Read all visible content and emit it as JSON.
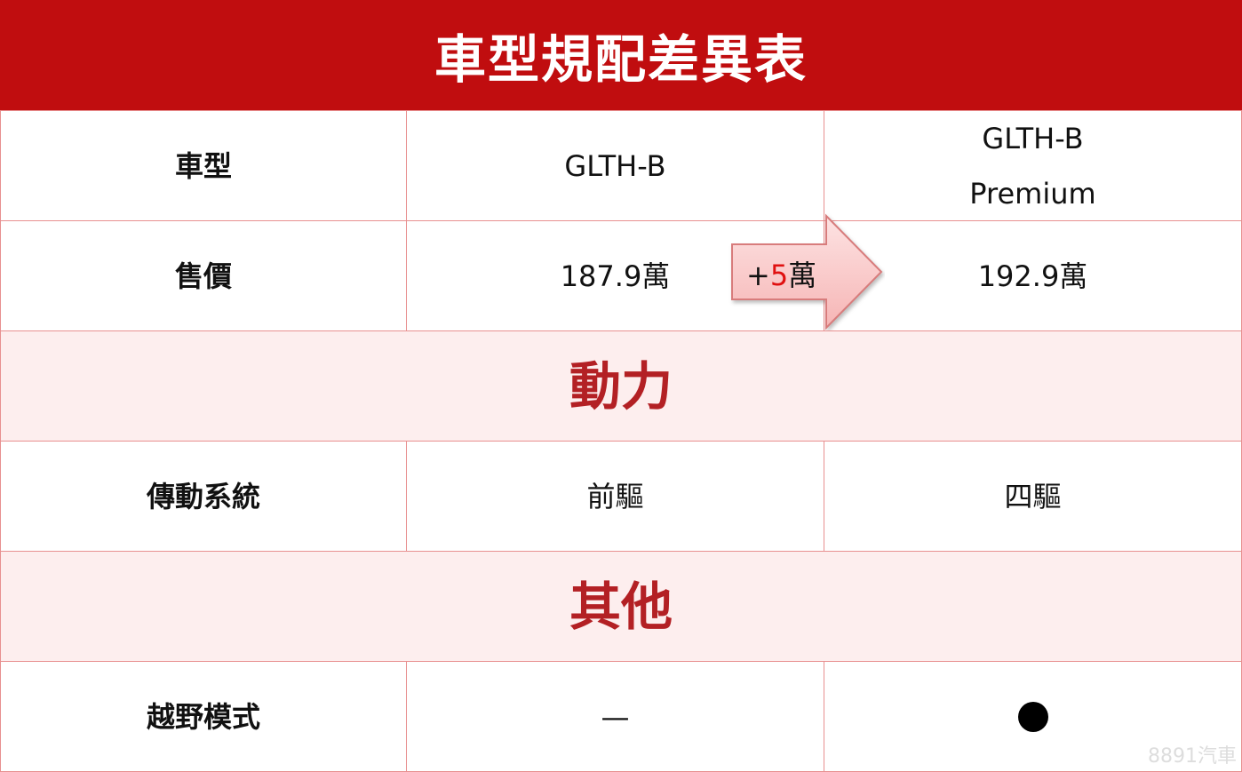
{
  "title": "車型規配差異表",
  "header_row": {
    "label": "車型",
    "col1": "GLTH-B",
    "col2_line1": "GLTH-B",
    "col2_line2": "Premium"
  },
  "price_row": {
    "label": "售價",
    "col1": "187.9萬",
    "col2": "192.9萬"
  },
  "price_diff": {
    "sign": "+",
    "amount": "5",
    "unit": "萬"
  },
  "sections": [
    {
      "title": "動力",
      "rows": [
        {
          "label": "傳動系統",
          "col1": "前驅",
          "col2": "四驅"
        }
      ]
    },
    {
      "title": "其他",
      "rows": [
        {
          "label": "越野模式",
          "col1": "—",
          "col2_icon": "filled-circle"
        }
      ]
    }
  ],
  "watermark": "8891汽車",
  "colors": {
    "title_bg": "#C00D0F",
    "section_bg": "#FDEEEE",
    "section_text": "#B32024",
    "border": "#E89090",
    "arrow_fill": "#F9C4C4",
    "highlight": "#E01010"
  }
}
